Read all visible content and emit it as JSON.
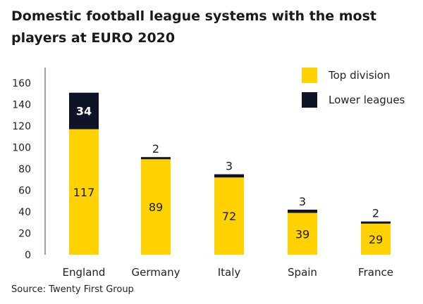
{
  "title": "Domestic football league systems with the most players at EURO 2020",
  "source": "Source: Twenty First Group",
  "colors": {
    "top": "#FFD200",
    "lower": "#0E1426",
    "axis": "#444444"
  },
  "chart_data": {
    "type": "bar",
    "stacked": true,
    "title": "Domestic football league systems with the most players at EURO 2020",
    "categories": [
      "England",
      "Germany",
      "Italy",
      "Spain",
      "France"
    ],
    "series": [
      {
        "name": "Top division",
        "values": [
          117,
          89,
          72,
          39,
          29
        ]
      },
      {
        "name": "Lower leagues",
        "values": [
          34,
          2,
          3,
          3,
          2
        ]
      }
    ],
    "ylim": [
      0,
      160
    ],
    "yticks": [
      0,
      20,
      40,
      60,
      80,
      100,
      120,
      140,
      160
    ],
    "legend": "top-right",
    "grid": false
  }
}
